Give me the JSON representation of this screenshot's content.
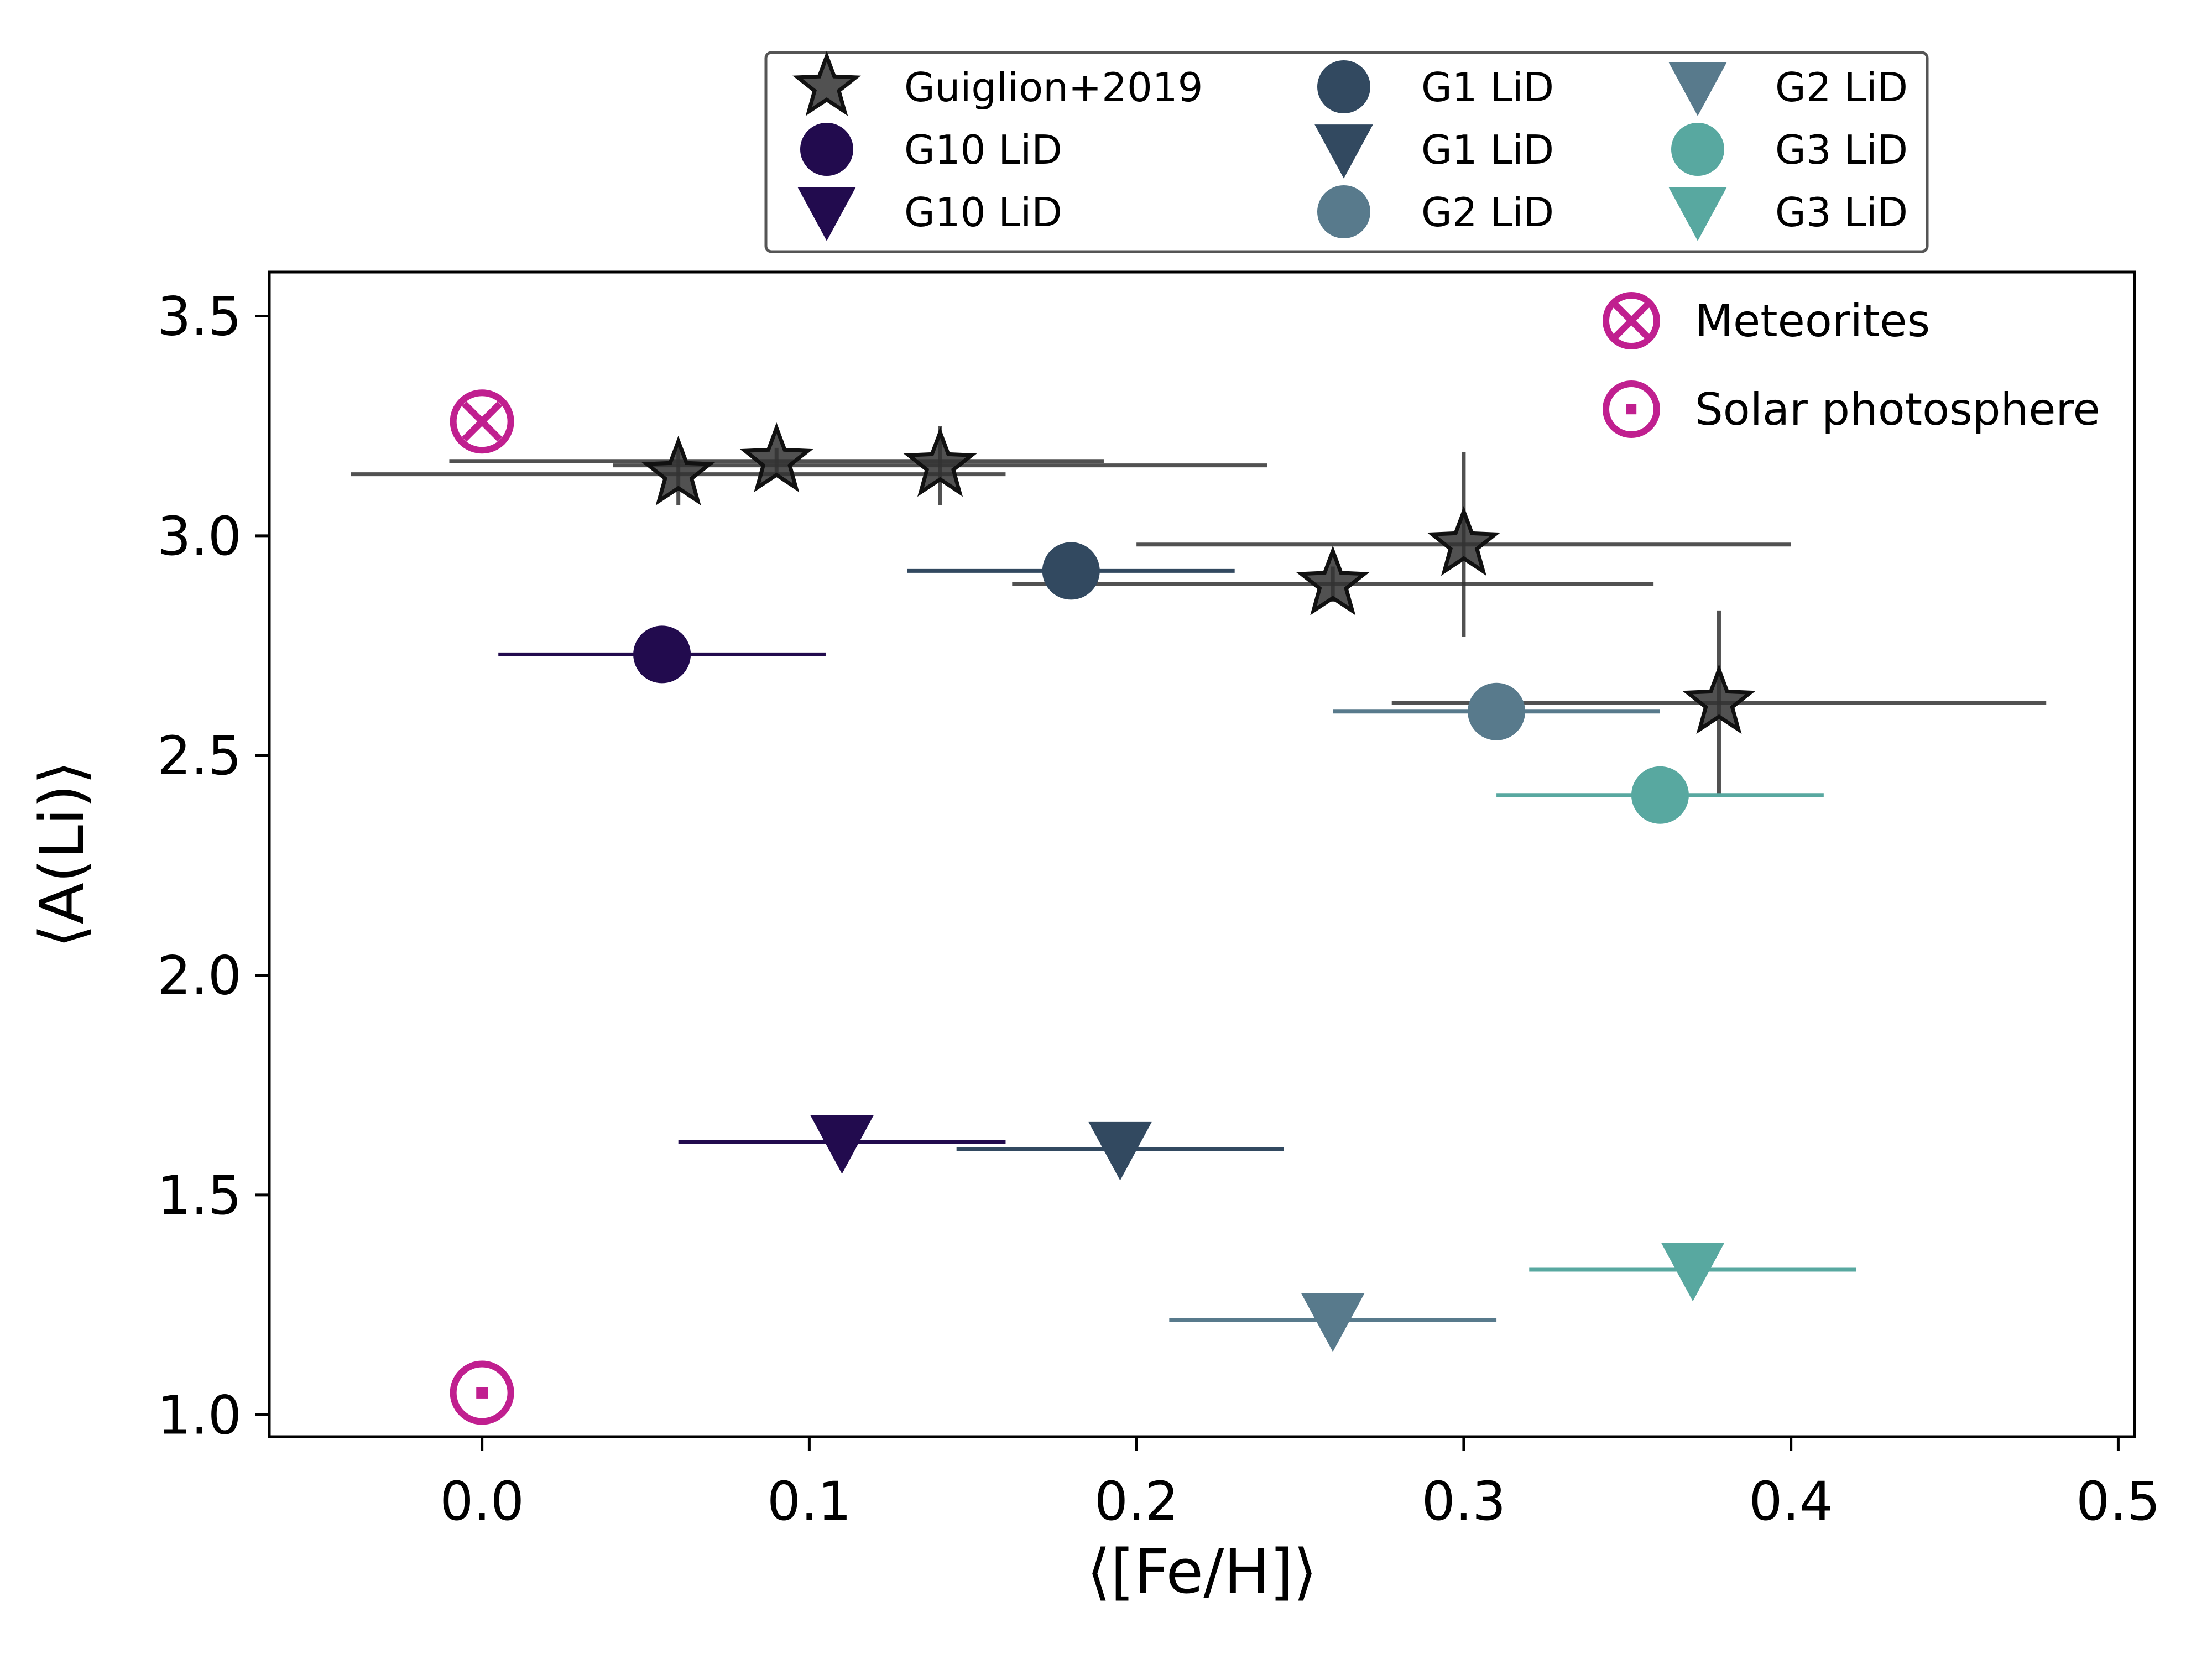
{
  "chart_data": {
    "type": "scatter",
    "title": "",
    "xlabel": "⟨[Fe/H]⟩",
    "ylabel": "⟨A(Li)⟩",
    "xlim": [
      -0.065,
      0.505
    ],
    "ylim": [
      0.95,
      3.6
    ],
    "xticks": [
      0.0,
      0.1,
      0.2,
      0.3,
      0.4,
      0.5
    ],
    "yticks": [
      1.0,
      1.5,
      2.0,
      2.5,
      3.0,
      3.5
    ],
    "xtick_labels": [
      "0.0",
      "0.1",
      "0.2",
      "0.3",
      "0.4",
      "0.5"
    ],
    "ytick_labels": [
      "1.0",
      "1.5",
      "2.0",
      "2.5",
      "3.0",
      "3.5"
    ],
    "grid": false,
    "legend_placement": "above plot, centered",
    "legend_columns": 3,
    "series": [
      {
        "name": "Guiglion+2019",
        "marker": "star",
        "color": "#333333",
        "points": [
          {
            "x": 0.06,
            "y": 3.14,
            "xerr": [
              0.1,
              0.1
            ],
            "yerr": [
              0.07,
              0.07
            ]
          },
          {
            "x": 0.09,
            "y": 3.17,
            "xerr": [
              0.1,
              0.1
            ],
            "yerr": [
              0.03,
              0.03
            ]
          },
          {
            "x": 0.14,
            "y": 3.16,
            "xerr": [
              0.1,
              0.1
            ],
            "yerr": [
              0.09,
              0.09
            ]
          },
          {
            "x": 0.26,
            "y": 2.89,
            "xerr": [
              0.098,
              0.098
            ],
            "yerr": [
              0.04,
              0.04
            ]
          },
          {
            "x": 0.3,
            "y": 2.98,
            "xerr": [
              0.1,
              0.1
            ],
            "yerr": [
              0.21,
              0.21
            ]
          },
          {
            "x": 0.378,
            "y": 2.62,
            "xerr": [
              0.1,
              0.1
            ],
            "yerr": [
              0.21,
              0.21
            ]
          }
        ]
      },
      {
        "name": "G10 LiD",
        "marker": "circle",
        "color": "#220b4e",
        "points": [
          {
            "x": 0.055,
            "y": 2.73,
            "xerr": [
              0.05,
              0.05
            ]
          }
        ]
      },
      {
        "name": "G10 LiD",
        "marker": "triangle-down",
        "color": "#220b4e",
        "points": [
          {
            "x": 0.11,
            "y": 1.62,
            "xerr": [
              0.05,
              0.05
            ]
          }
        ]
      },
      {
        "name": "G1 LiD",
        "marker": "circle",
        "color": "#324960",
        "points": [
          {
            "x": 0.18,
            "y": 2.92,
            "xerr": [
              0.05,
              0.05
            ]
          }
        ]
      },
      {
        "name": "G1 LiD",
        "marker": "triangle-down",
        "color": "#324960",
        "points": [
          {
            "x": 0.195,
            "y": 1.605,
            "xerr": [
              0.05,
              0.05
            ]
          }
        ]
      },
      {
        "name": "G2 LiD",
        "marker": "circle",
        "color": "#587a8c",
        "points": [
          {
            "x": 0.31,
            "y": 2.6,
            "xerr": [
              0.05,
              0.05
            ]
          }
        ]
      },
      {
        "name": "G2 LiD",
        "marker": "triangle-down",
        "color": "#587a8c",
        "points": [
          {
            "x": 0.26,
            "y": 1.215,
            "xerr": [
              0.05,
              0.05
            ]
          }
        ]
      },
      {
        "name": "G3 LiD",
        "marker": "circle",
        "color": "#58a8a0",
        "points": [
          {
            "x": 0.36,
            "y": 2.41,
            "xerr": [
              0.05,
              0.05
            ]
          }
        ]
      },
      {
        "name": "G3 LiD",
        "marker": "triangle-down",
        "color": "#58a8a0",
        "points": [
          {
            "x": 0.37,
            "y": 1.33,
            "xerr": [
              0.05,
              0.05
            ]
          }
        ]
      },
      {
        "name": "Meteorites",
        "marker": "circle-cross",
        "color": "#c01f8f",
        "points": [
          {
            "x": 0.0,
            "y": 3.26
          }
        ]
      },
      {
        "name": "Solar photosphere",
        "marker": "circle-dot",
        "color": "#c01f8f",
        "points": [
          {
            "x": 0.0,
            "y": 1.05
          }
        ]
      }
    ],
    "legend": [
      {
        "label": "Guiglion+2019",
        "marker": "star",
        "color": "#333333"
      },
      {
        "label": "G10 LiD",
        "marker": "circle",
        "color": "#220b4e"
      },
      {
        "label": "G10 LiD",
        "marker": "triangle-down",
        "color": "#220b4e"
      },
      {
        "label": "G1 LiD",
        "marker": "circle",
        "color": "#324960"
      },
      {
        "label": "G1 LiD",
        "marker": "triangle-down",
        "color": "#324960"
      },
      {
        "label": "G2 LiD",
        "marker": "circle",
        "color": "#587a8c"
      },
      {
        "label": "G2 LiD",
        "marker": "triangle-down",
        "color": "#587a8c"
      },
      {
        "label": "G3 LiD",
        "marker": "circle",
        "color": "#58a8a0"
      },
      {
        "label": "G3 LiD",
        "marker": "triangle-down",
        "color": "#58a8a0"
      }
    ],
    "inset_legend": {
      "placement": "upper right, inside axes",
      "items": [
        {
          "label": "Meteorites",
          "marker": "circle-cross",
          "color": "#c01f8f"
        },
        {
          "label": "Solar photosphere",
          "marker": "circle-dot",
          "color": "#c01f8f"
        }
      ]
    }
  }
}
